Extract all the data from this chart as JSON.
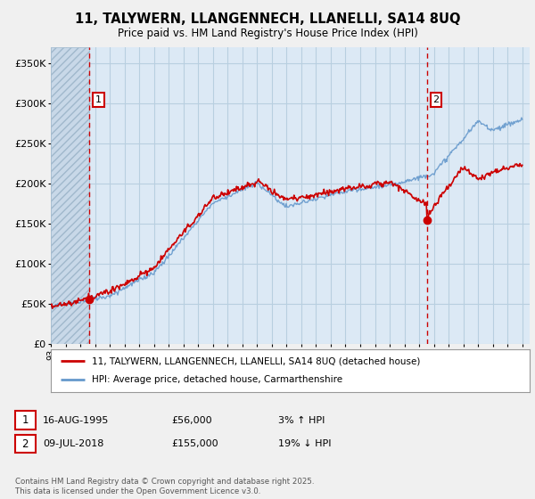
{
  "title_line1": "11, TALYWERN, LLANGENNECH, LLANELLI, SA14 8UQ",
  "title_line2": "Price paid vs. HM Land Registry's House Price Index (HPI)",
  "ylim": [
    0,
    370000
  ],
  "yticks": [
    0,
    50000,
    100000,
    150000,
    200000,
    250000,
    300000,
    350000
  ],
  "ytick_labels": [
    "£0",
    "£50K",
    "£100K",
    "£150K",
    "£200K",
    "£250K",
    "£300K",
    "£350K"
  ],
  "background_color": "#f0f0f0",
  "plot_bg_color": "#dce9f5",
  "grid_color": "#b8cfe0",
  "red_line_color": "#cc0000",
  "blue_line_color": "#6699cc",
  "dashed_line_color": "#cc0000",
  "marker_color": "#cc0000",
  "point1_x": 1995.62,
  "point1_y": 56000,
  "point1_label": "1",
  "point2_x": 2018.52,
  "point2_y": 155000,
  "point2_label": "2",
  "legend_label1": "11, TALYWERN, LLANGENNECH, LLANELLI, SA14 8UQ (detached house)",
  "legend_label2": "HPI: Average price, detached house, Carmarthenshire",
  "table_row1": [
    "1",
    "16-AUG-1995",
    "£56,000",
    "3% ↑ HPI"
  ],
  "table_row2": [
    "2",
    "09-JUL-2018",
    "£155,000",
    "19% ↓ HPI"
  ],
  "footnote": "Contains HM Land Registry data © Crown copyright and database right 2025.\nThis data is licensed under the Open Government Licence v3.0.",
  "xmin": 1993,
  "xmax": 2025.5
}
